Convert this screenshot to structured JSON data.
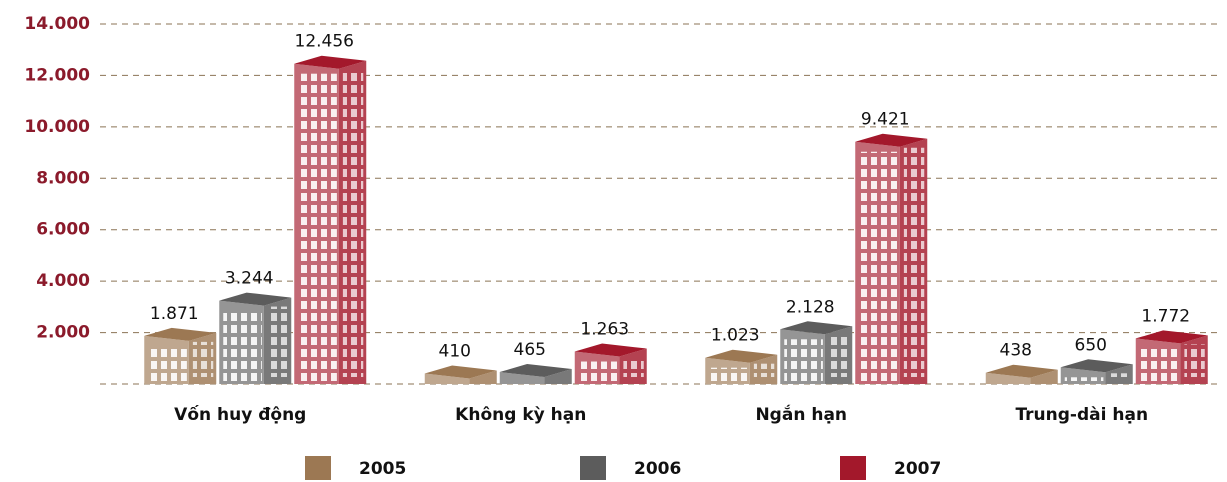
{
  "chart_data": {
    "type": "bar",
    "categories": [
      "Vốn huy động",
      "Không kỳ hạn",
      "Ngắn hạn",
      "Trung-dài hạn"
    ],
    "series": [
      {
        "name": "2005",
        "color": "#9c7853",
        "values": [
          1871,
          410,
          1023,
          438
        ],
        "value_labels": [
          "1.871",
          "410",
          "1.023",
          "438"
        ]
      },
      {
        "name": "2006",
        "color": "#5c5c5c",
        "values": [
          3244,
          465,
          2128,
          650
        ],
        "value_labels": [
          "3.244",
          "465",
          "2.128",
          "650"
        ]
      },
      {
        "name": "2007",
        "color": "#a3182b",
        "values": [
          12456,
          1263,
          9421,
          1772
        ],
        "value_labels": [
          "12.456",
          "1.263",
          "9.421",
          "1.772"
        ]
      }
    ],
    "ylim": [
      0,
      14000
    ],
    "yticks": [
      {
        "value": 2000,
        "label": "2.000"
      },
      {
        "value": 4000,
        "label": "4.000"
      },
      {
        "value": 6000,
        "label": "6.000"
      },
      {
        "value": 8000,
        "label": "8.000"
      },
      {
        "value": 10000,
        "label": "10.000"
      },
      {
        "value": 12000,
        "label": "12.000"
      },
      {
        "value": 14000,
        "label": "14.000"
      }
    ],
    "grid": true,
    "legend": "bottom"
  }
}
